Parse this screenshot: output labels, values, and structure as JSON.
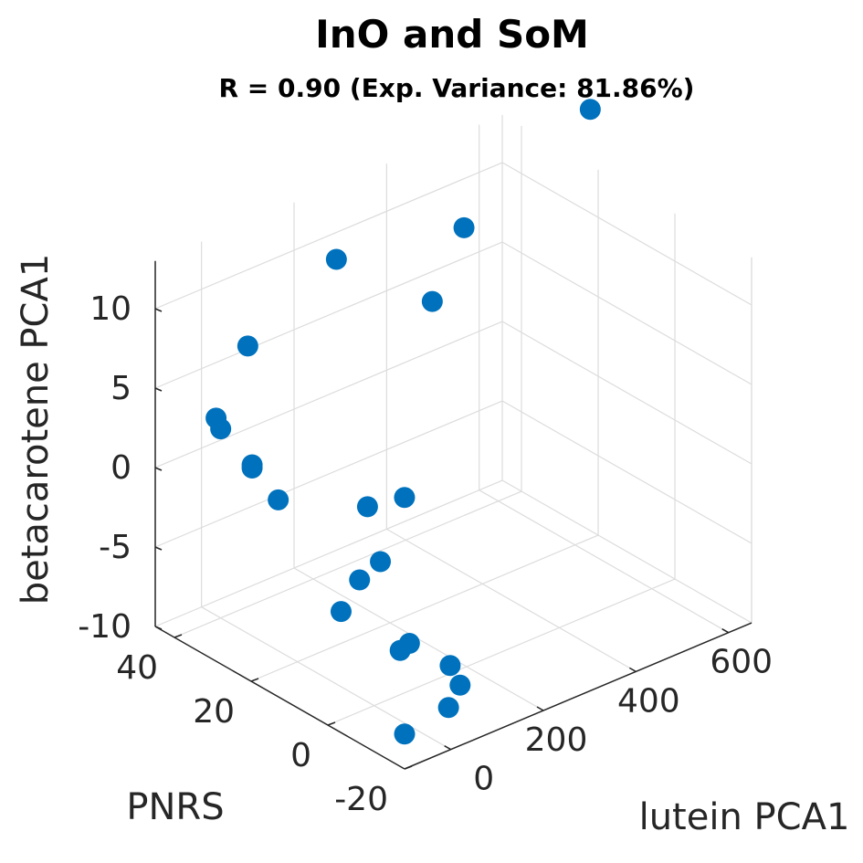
{
  "chart_data": {
    "type": "scatter3d",
    "title": "InO and SoM",
    "subtitle": "R = 0.90 (Exp. Variance: 81.86%)",
    "xlabel": "lutein PCA1",
    "ylabel": "PNRS",
    "zlabel": "betacarotene PCA1",
    "x_ticks": [
      "0",
      "200",
      "400",
      "600"
    ],
    "y_ticks": [
      "-20",
      "0",
      "20",
      "40"
    ],
    "z_ticks": [
      "-10",
      "-5",
      "0",
      "5",
      "10"
    ],
    "xlim": [
      -100,
      650
    ],
    "ylim": [
      -20,
      45
    ],
    "zlim": [
      -10,
      13
    ],
    "grid": true,
    "marker_color": "#0072BD",
    "points": [
      {
        "x": -100,
        "y": -20,
        "z": -7.8
      },
      {
        "x": -5,
        "y": -20,
        "z": -7.3
      },
      {
        "x": 40,
        "y": -15,
        "z": -5.9
      },
      {
        "x": 20,
        "y": -20,
        "z": -6.2
      },
      {
        "x": -10,
        "y": -8,
        "z": -5.3
      },
      {
        "x": 10,
        "y": -8,
        "z": -5.1
      },
      {
        "x": -30,
        "y": 5,
        "z": -4.4
      },
      {
        "x": 10,
        "y": 5,
        "z": -2.9
      },
      {
        "x": 55,
        "y": 5,
        "z": -2.3
      },
      {
        "x": 110,
        "y": 15,
        "z": -0.9
      },
      {
        "x": 190,
        "y": 15,
        "z": -1.3
      },
      {
        "x": 0,
        "y": 25,
        "z": -0.5
      },
      {
        "x": -15,
        "y": 30,
        "z": 1.0
      },
      {
        "x": -15,
        "y": 30,
        "z": 1.2
      },
      {
        "x": -10,
        "y": 40,
        "z": 2.7
      },
      {
        "x": 0,
        "y": 40,
        "z": 1.9
      },
      {
        "x": 100,
        "y": 45,
        "z": 5.2
      },
      {
        "x": 250,
        "y": 15,
        "z": 10.3
      },
      {
        "x": 250,
        "y": 40,
        "z": 9.5
      },
      {
        "x": 360,
        "y": 20,
        "z": 12.9
      },
      {
        "x": 550,
        "y": 10,
        "z": 19.4
      }
    ]
  }
}
